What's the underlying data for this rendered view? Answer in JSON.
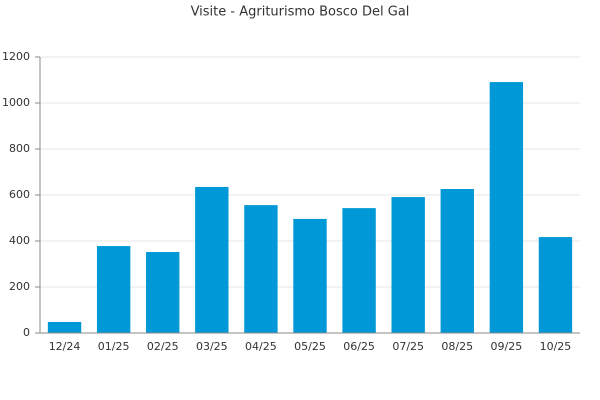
{
  "chart_data": {
    "type": "bar",
    "title": "Visite - Agriturismo Bosco Del Gal",
    "categories": [
      "12/24",
      "01/25",
      "02/25",
      "03/25",
      "04/25",
      "05/25",
      "06/25",
      "07/25",
      "08/25",
      "09/25",
      "10/25"
    ],
    "values": [
      48,
      378,
      352,
      635,
      556,
      496,
      543,
      591,
      626,
      1091,
      417
    ],
    "color": "#0098d6",
    "ylim": [
      0,
      1200
    ],
    "yticks": [
      0,
      200,
      400,
      600,
      800,
      1000,
      1200
    ],
    "grid": true
  }
}
